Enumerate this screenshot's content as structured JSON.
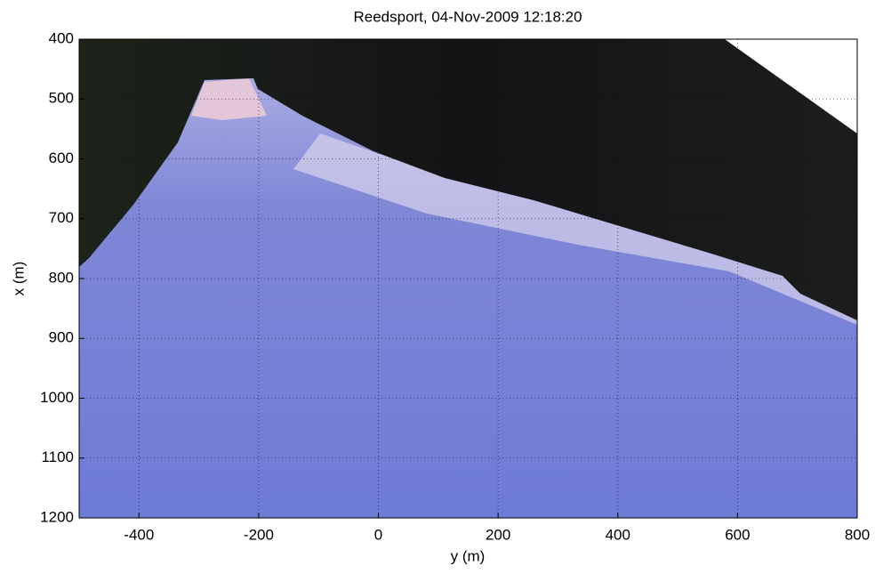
{
  "chart_data": {
    "type": "image",
    "title": "Reedsport, 04-Nov-2009 12:18:20",
    "xlabel": "y (m)",
    "ylabel": "x (m)",
    "xlim": [
      -500,
      800
    ],
    "xticks": [
      -400,
      -200,
      0,
      200,
      400,
      600,
      800
    ],
    "ylim": [
      400,
      1200
    ],
    "yticks": [
      400,
      500,
      600,
      700,
      800,
      900,
      1000,
      1100,
      1200
    ],
    "yreverse": true,
    "grid": true
  }
}
